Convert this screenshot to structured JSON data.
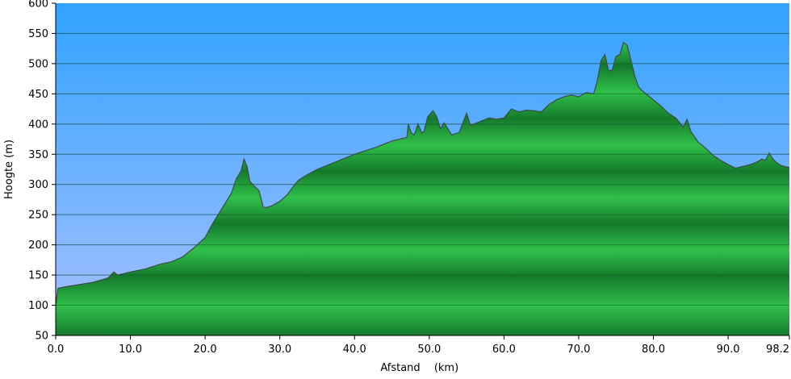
{
  "chart_data": {
    "type": "area",
    "title": "",
    "xlabel": "Afstand",
    "xunit": "(km)",
    "ylabel": "Hoogte (m)",
    "xlim": [
      0,
      98.2
    ],
    "ylim": [
      50,
      600
    ],
    "x_ticks": [
      {
        "value": 0,
        "label": "0.0"
      },
      {
        "value": 10,
        "label": "10.0"
      },
      {
        "value": 20,
        "label": "20.0"
      },
      {
        "value": 30,
        "label": "30.0"
      },
      {
        "value": 40,
        "label": "40.0"
      },
      {
        "value": 50,
        "label": "50.0"
      },
      {
        "value": 60,
        "label": "60.0"
      },
      {
        "value": 70,
        "label": "70.0"
      },
      {
        "value": 80,
        "label": "80.0"
      },
      {
        "value": 90,
        "label": "90.0"
      },
      {
        "value": 98.2,
        "label": "98.2"
      }
    ],
    "y_ticks": [
      {
        "value": 50,
        "label": "50"
      },
      {
        "value": 100,
        "label": "100"
      },
      {
        "value": 150,
        "label": "150"
      },
      {
        "value": 200,
        "label": "200"
      },
      {
        "value": 250,
        "label": "250"
      },
      {
        "value": 300,
        "label": "300"
      },
      {
        "value": 350,
        "label": "350"
      },
      {
        "value": 400,
        "label": "400"
      },
      {
        "value": 450,
        "label": "450"
      },
      {
        "value": 500,
        "label": "500"
      },
      {
        "value": 550,
        "label": "550"
      },
      {
        "value": 600,
        "label": "600"
      }
    ],
    "grid": true,
    "colors": {
      "sky_top": "#2fa2ff",
      "sky_bottom": "#a9c1ff",
      "fill_light": "#2fc04a",
      "fill_dark": "#157a2c",
      "outline": "#3c4a46"
    },
    "series": [
      {
        "x": [
          0,
          0.3,
          1,
          2,
          3,
          5,
          7,
          7.8,
          8.3,
          10,
          12,
          14,
          15.5,
          17,
          18.5,
          20,
          21,
          22,
          23,
          23.5,
          24.2,
          24.8,
          25.2,
          25.6,
          26,
          26.5,
          27.2,
          27.8,
          28.3,
          29,
          30,
          31,
          32,
          32.5,
          33.5,
          35,
          37,
          40,
          43,
          45,
          47,
          47.2,
          47.6,
          48,
          48.5,
          49,
          49.3,
          49.8,
          50.5,
          51,
          51.5,
          52,
          53,
          54,
          54.5,
          55,
          55.5,
          56,
          57,
          58,
          59,
          60,
          61,
          62,
          63,
          64,
          65,
          66,
          67,
          68,
          69,
          70,
          71,
          72,
          72.5,
          73,
          73.5,
          74,
          74.5,
          75,
          75.5,
          76,
          76.5,
          77,
          77.5,
          78,
          78.5,
          79,
          80,
          81,
          82,
          83,
          84,
          84.5,
          85,
          86,
          87,
          88,
          89,
          90,
          91,
          92,
          93,
          94,
          94.5,
          95,
          95.5,
          96,
          96.5,
          97,
          97.5,
          98.2
        ],
        "y": [
          100,
          128,
          130,
          132,
          134,
          138,
          145,
          155,
          150,
          155,
          160,
          168,
          172,
          180,
          195,
          212,
          235,
          255,
          275,
          285,
          310,
          322,
          342,
          330,
          305,
          298,
          290,
          262,
          262,
          265,
          272,
          283,
          300,
          307,
          315,
          325,
          335,
          350,
          362,
          372,
          378,
          400,
          385,
          382,
          400,
          385,
          388,
          412,
          422,
          412,
          392,
          402,
          382,
          386,
          402,
          418,
          398,
          400,
          405,
          410,
          408,
          410,
          425,
          420,
          423,
          422,
          420,
          432,
          440,
          445,
          448,
          445,
          452,
          450,
          472,
          505,
          515,
          488,
          490,
          512,
          515,
          535,
          530,
          505,
          480,
          462,
          455,
          450,
          440,
          430,
          418,
          410,
          395,
          408,
          388,
          370,
          360,
          348,
          340,
          333,
          327,
          330,
          333,
          338,
          342,
          340,
          352,
          342,
          336,
          332,
          330,
          328
        ]
      }
    ]
  }
}
